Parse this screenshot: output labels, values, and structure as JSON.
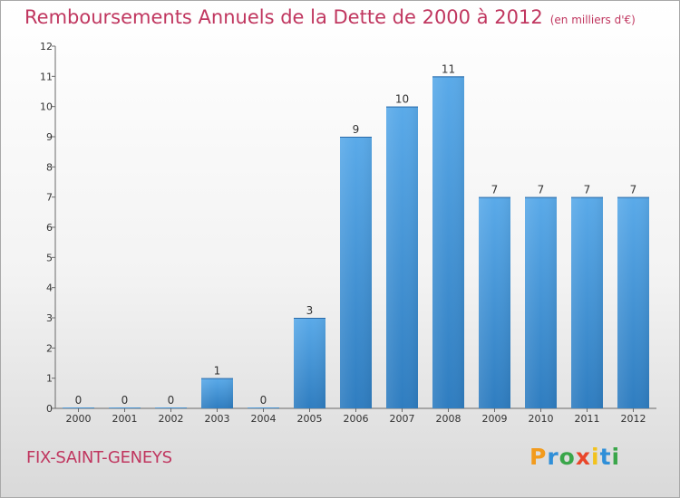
{
  "header": {
    "title": "Remboursements Annuels de la Dette de 2000 à 2012",
    "unit": "(en milliers d'€)"
  },
  "footer": {
    "town": "FIX-SAINT-GENEYS",
    "brand": [
      "P",
      "r",
      "o",
      "x",
      "i",
      "t",
      "i"
    ]
  },
  "colors": {
    "title": "#c0365f",
    "bar_top": "#5aaae9",
    "bar_bottom": "#2f7dc0"
  },
  "chart_data": {
    "type": "bar",
    "title": "Remboursements Annuels de la Dette de 2000 à 2012",
    "xlabel": "",
    "ylabel": "",
    "categories": [
      "2000",
      "2001",
      "2002",
      "2003",
      "2004",
      "2005",
      "2006",
      "2007",
      "2008",
      "2009",
      "2010",
      "2011",
      "2012"
    ],
    "values": [
      0,
      0,
      0,
      1,
      0,
      3,
      9,
      10,
      11,
      7,
      7,
      7,
      7
    ],
    "ylim": [
      0,
      12
    ],
    "yticks": [
      0,
      1,
      2,
      3,
      4,
      5,
      6,
      7,
      8,
      9,
      10,
      11,
      12
    ],
    "grid": false,
    "legend": "none"
  }
}
